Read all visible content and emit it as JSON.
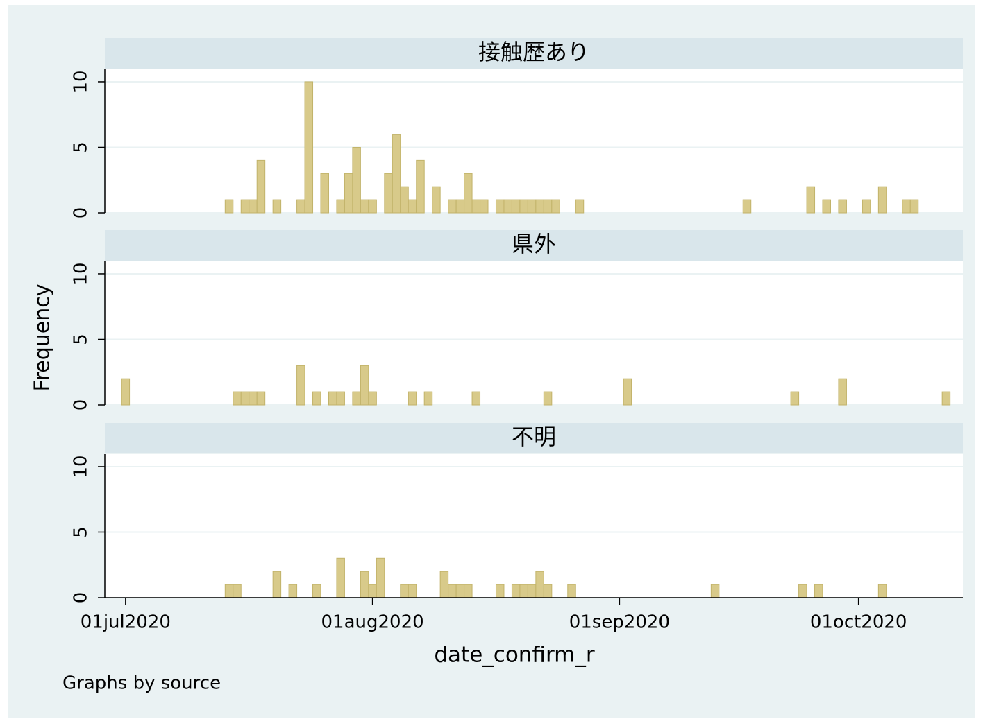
{
  "chart_data": [
    {
      "type": "bar",
      "title": "接触歴あり",
      "x": [
        22110,
        22112,
        22113,
        22114,
        22116,
        22119,
        22120,
        22122,
        22124,
        22125,
        22126,
        22127,
        22128,
        22130,
        22131,
        22132,
        22133,
        22134,
        22136,
        22138,
        22139,
        22140,
        22141,
        22142,
        22144,
        22145,
        22146,
        22147,
        22148,
        22149,
        22150,
        22151,
        22154,
        22175,
        22183,
        22185,
        22187,
        22190,
        22192,
        22195,
        22196
      ],
      "values": [
        1,
        1,
        1,
        4,
        1,
        1,
        10,
        3,
        1,
        3,
        5,
        1,
        1,
        3,
        6,
        2,
        1,
        4,
        2,
        1,
        1,
        3,
        1,
        1,
        1,
        1,
        1,
        1,
        1,
        1,
        1,
        1,
        1,
        1,
        2,
        1,
        1,
        1,
        2,
        1,
        1
      ],
      "color": "#d8ca8a",
      "xlim": [
        22094.4,
        22202.1
      ],
      "ylim": [
        0,
        10.95
      ],
      "yticks": [
        0,
        5,
        10
      ],
      "grid": true
    },
    {
      "type": "bar",
      "title": "県外",
      "x": [
        22097,
        22111,
        22112,
        22113,
        22114,
        22119,
        22121,
        22123,
        22124,
        22126,
        22127,
        22128,
        22133,
        22135,
        22141,
        22150,
        22160,
        22181,
        22187,
        22200
      ],
      "values": [
        2,
        1,
        1,
        1,
        1,
        3,
        1,
        1,
        1,
        1,
        3,
        1,
        1,
        1,
        1,
        1,
        2,
        1,
        2,
        1
      ],
      "color": "#d8ca8a",
      "xlim": [
        22094.4,
        22202.1
      ],
      "ylim": [
        0,
        10.95
      ],
      "yticks": [
        0,
        5,
        10
      ],
      "grid": true
    },
    {
      "type": "bar",
      "title": "不明",
      "x": [
        22110,
        22111,
        22116,
        22118,
        22121,
        22124,
        22127,
        22128,
        22129,
        22132,
        22133,
        22137,
        22138,
        22139,
        22140,
        22144,
        22146,
        22147,
        22148,
        22149,
        22150,
        22153,
        22171,
        22182,
        22184,
        22192
      ],
      "values": [
        1,
        1,
        2,
        1,
        1,
        3,
        2,
        1,
        3,
        1,
        1,
        2,
        1,
        1,
        1,
        1,
        1,
        1,
        1,
        2,
        1,
        1,
        1,
        1,
        1,
        1
      ],
      "color": "#d8ca8a",
      "xlim": [
        22094.4,
        22202.1
      ],
      "ylim": [
        0,
        10.95
      ],
      "yticks": [
        0,
        5,
        10
      ],
      "grid": true,
      "xticks": [
        {
          "value": 22097,
          "label": "01jul2020"
        },
        {
          "value": 22128,
          "label": "01aug2020"
        },
        {
          "value": 22159,
          "label": "01sep2020"
        },
        {
          "value": 22189,
          "label": "01oct2020"
        }
      ]
    }
  ],
  "x_label": "date_confirm_r",
  "y_label": "Frequency",
  "note": "Graphs by source"
}
